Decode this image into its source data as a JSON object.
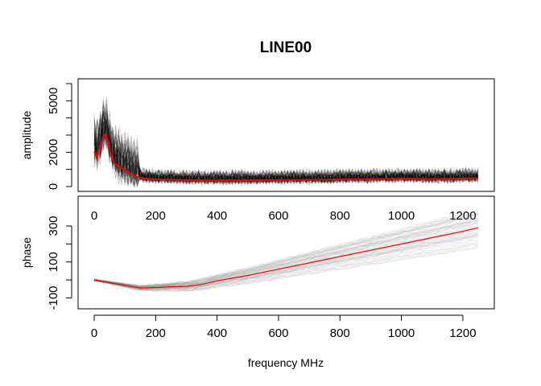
{
  "chart_data": [
    {
      "type": "line",
      "title": "LINE00",
      "xlabel": "",
      "ylabel": "amplitude",
      "xlim": [
        0,
        1250
      ],
      "ylim": [
        0,
        6000
      ],
      "x_ticks": [
        0,
        200,
        400,
        600,
        800,
        1000,
        1200
      ],
      "y_ticks": [
        0,
        2000,
        5000
      ],
      "y_minor_ticks": [
        1000,
        3000,
        4000,
        6000
      ],
      "grid": false,
      "series": [
        {
          "role": "mean",
          "color": "#ff0000",
          "x": [
            0,
            8,
            15,
            22,
            30,
            38,
            45,
            55,
            65,
            80,
            100,
            130,
            160,
            200,
            300,
            400,
            500,
            600,
            700,
            800,
            900,
            1000,
            1100,
            1200,
            1250
          ],
          "y": [
            2050,
            1650,
            2150,
            2350,
            2950,
            3050,
            2550,
            1850,
            1350,
            1150,
            950,
            620,
            480,
            420,
            380,
            360,
            370,
            380,
            390,
            420,
            440,
            470,
            440,
            480,
            490
          ]
        }
      ],
      "background_traces": {
        "color": "#000000",
        "count": 120
      }
    },
    {
      "type": "line",
      "xlabel": "frequency MHz",
      "ylabel": "phase",
      "xlim": [
        0,
        1250
      ],
      "ylim": [
        -150,
        400
      ],
      "x_ticks": [
        0,
        200,
        400,
        600,
        800,
        1000,
        1200
      ],
      "y_ticks": [
        -100,
        100,
        300
      ],
      "y_minor_ticks": [
        0,
        200
      ],
      "grid": false,
      "series": [
        {
          "role": "mean",
          "color": "#ff0000",
          "x": [
            0,
            50,
            100,
            150,
            200,
            250,
            300,
            350,
            400,
            500,
            600,
            700,
            800,
            900,
            1000,
            1100,
            1200,
            1250
          ],
          "y": [
            0,
            -15,
            -30,
            -45,
            -42,
            -38,
            -35,
            -25,
            -5,
            25,
            60,
            95,
            130,
            165,
            200,
            235,
            270,
            290
          ]
        }
      ],
      "background_traces": {
        "color": "#808080",
        "count": 120
      }
    }
  ]
}
